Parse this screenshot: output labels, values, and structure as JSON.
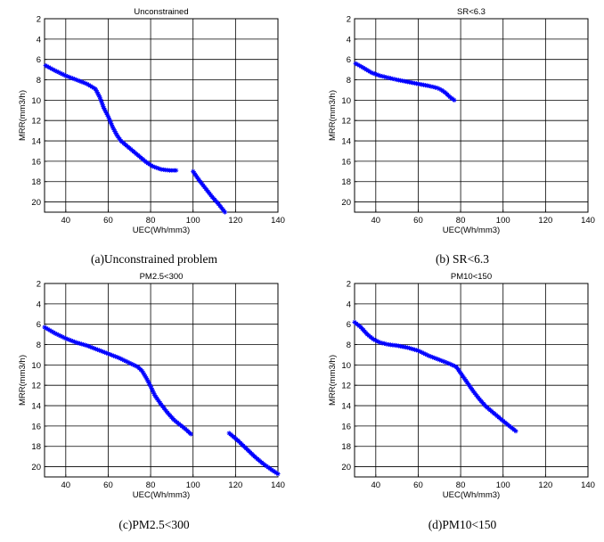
{
  "chart_data": [
    {
      "type": "scatter",
      "title": "Unconstrained",
      "caption": "(a)Unconstrained problem",
      "xlabel": "UEC(Wh/mm3)",
      "ylabel": "MRR(mm3/h)",
      "xlim": [
        30,
        140
      ],
      "ylim": [
        2,
        21
      ],
      "y_reversed": true,
      "grid": true,
      "xticks": [
        40,
        60,
        80,
        100,
        120,
        140
      ],
      "yticks": [
        2,
        4,
        6,
        8,
        10,
        12,
        14,
        16,
        18,
        20
      ],
      "marker": "asterisk",
      "series": [
        {
          "color": "#0000ff",
          "x": [
            30.5,
            35,
            40,
            45,
            50,
            54,
            56,
            58,
            60,
            62,
            64,
            66,
            70,
            74,
            78,
            81,
            85,
            89,
            92
          ],
          "y": [
            6.6,
            7.1,
            7.6,
            8.0,
            8.4,
            8.9,
            9.7,
            10.8,
            11.6,
            12.6,
            13.4,
            14.0,
            14.7,
            15.4,
            16.1,
            16.5,
            16.8,
            16.9,
            16.9
          ]
        },
        {
          "color": "#0000ff",
          "x": [
            100,
            103,
            106,
            109,
            112,
            115
          ],
          "y": [
            17.0,
            17.9,
            18.7,
            19.5,
            20.2,
            21.0
          ]
        }
      ]
    },
    {
      "type": "scatter",
      "title": "SR<6.3",
      "caption": "(b) SR<6.3",
      "xlabel": "UEC(Wh/mm3)",
      "ylabel": "MRR(mm3/h)",
      "xlim": [
        30,
        140
      ],
      "ylim": [
        2,
        21
      ],
      "y_reversed": true,
      "grid": true,
      "xticks": [
        40,
        60,
        80,
        100,
        120,
        140
      ],
      "yticks": [
        2,
        4,
        6,
        8,
        10,
        12,
        14,
        16,
        18,
        20
      ],
      "marker": "asterisk",
      "series": [
        {
          "color": "#0000ff",
          "x": [
            30.5,
            34,
            38,
            42,
            46,
            50,
            55,
            60,
            65,
            69,
            71,
            73,
            75,
            77
          ],
          "y": [
            6.4,
            6.8,
            7.3,
            7.6,
            7.8,
            8.0,
            8.2,
            8.4,
            8.6,
            8.8,
            9.0,
            9.3,
            9.7,
            10.0
          ]
        }
      ]
    },
    {
      "type": "scatter",
      "title": "PM2.5<300",
      "caption": "(c)PM2.5<300",
      "xlabel": "UEC(Wh/mm3)",
      "ylabel": "MRR(mm3/h)",
      "xlim": [
        30,
        140
      ],
      "ylim": [
        2,
        21
      ],
      "y_reversed": true,
      "grid": true,
      "xticks": [
        40,
        60,
        80,
        100,
        120,
        140
      ],
      "yticks": [
        2,
        4,
        6,
        8,
        10,
        12,
        14,
        16,
        18,
        20
      ],
      "marker": "asterisk",
      "series": [
        {
          "color": "#0000ff",
          "x": [
            30,
            35,
            40,
            45,
            50,
            55,
            60,
            65,
            70,
            74,
            76,
            78,
            80,
            82,
            85,
            88,
            91,
            94,
            97,
            99
          ],
          "y": [
            6.3,
            6.9,
            7.4,
            7.8,
            8.1,
            8.5,
            8.9,
            9.3,
            9.8,
            10.2,
            10.6,
            11.3,
            12.1,
            13.0,
            13.9,
            14.7,
            15.4,
            15.9,
            16.4,
            16.8
          ]
        },
        {
          "color": "#0000ff",
          "x": [
            117,
            121,
            125,
            129,
            133,
            137,
            140
          ],
          "y": [
            16.7,
            17.4,
            18.2,
            19.0,
            19.7,
            20.3,
            20.7
          ]
        }
      ]
    },
    {
      "type": "scatter",
      "title": "PM10<150",
      "caption": "(d)PM10<150",
      "xlabel": "UEC(Wh/mm3)",
      "ylabel": "MRR(mm3/h)",
      "xlim": [
        30,
        140
      ],
      "ylim": [
        2,
        21
      ],
      "y_reversed": true,
      "grid": true,
      "xticks": [
        40,
        60,
        80,
        100,
        120,
        140
      ],
      "yticks": [
        2,
        4,
        6,
        8,
        10,
        12,
        14,
        16,
        18,
        20
      ],
      "marker": "asterisk",
      "series": [
        {
          "color": "#0000ff",
          "x": [
            30,
            33,
            36,
            39,
            42,
            46,
            50,
            55,
            60,
            65,
            70,
            75,
            78,
            80,
            83,
            86,
            89,
            92,
            96,
            100,
            103,
            106
          ],
          "y": [
            5.8,
            6.3,
            7.0,
            7.5,
            7.8,
            8.0,
            8.1,
            8.3,
            8.6,
            9.1,
            9.5,
            9.9,
            10.2,
            10.8,
            11.7,
            12.6,
            13.4,
            14.1,
            14.8,
            15.5,
            16.0,
            16.5
          ]
        }
      ]
    }
  ]
}
